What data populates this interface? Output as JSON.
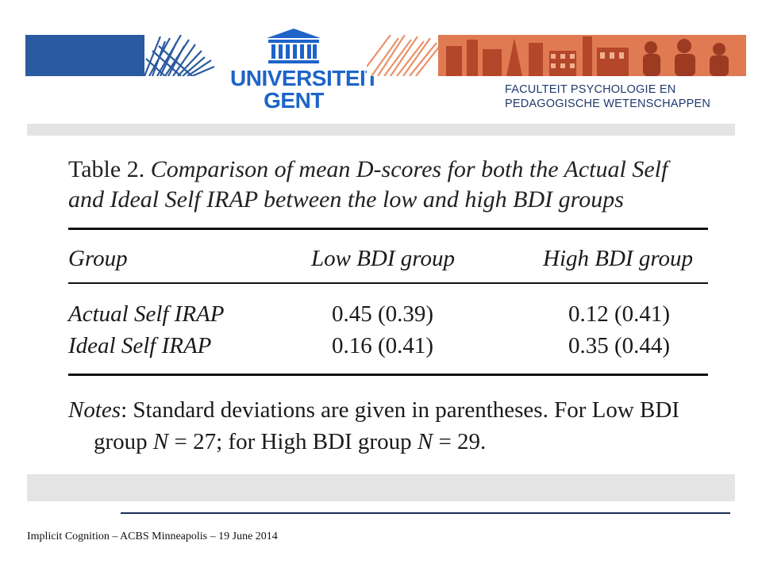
{
  "header": {
    "logo": {
      "icon": "building-columns-icon",
      "line1": "UNIVERSITEIT",
      "line2": "GENT"
    },
    "faculty": {
      "line1": "FACULTEIT PSYCHOLOGIE EN",
      "line2": "PEDAGOGISCHE WETENSCHAPPEN"
    },
    "colors": {
      "brand_blue": "#1e64c8",
      "banner_orange": "#e5885a"
    }
  },
  "table": {
    "caption_label": "Table 2.",
    "caption_text_line1": "Comparison of mean D-scores for both the Actual Self",
    "caption_text_line2": "and Ideal Self IRAP between the low and high BDI groups",
    "columns": [
      "Group",
      "Low BDI group",
      "High BDI group"
    ],
    "rows": [
      {
        "group": "Actual Self IRAP",
        "low": "0.45 (0.39)",
        "high": "0.12 (0.41)"
      },
      {
        "group": "Ideal Self IRAP",
        "low": "0.16 (0.41)",
        "high": "0.35 (0.44)"
      }
    ],
    "notes_label": "Notes",
    "notes_line1": ": Standard deviations are given in parentheses. For Low BDI",
    "notes_line2_a": "group ",
    "notes_n": "N",
    "notes_line2_b": " = 27; for High BDI group ",
    "notes_line2_c": " = 29."
  },
  "footer": {
    "text": "Implicit Cognition – ACBS Minneapolis – 19 June 2014"
  }
}
